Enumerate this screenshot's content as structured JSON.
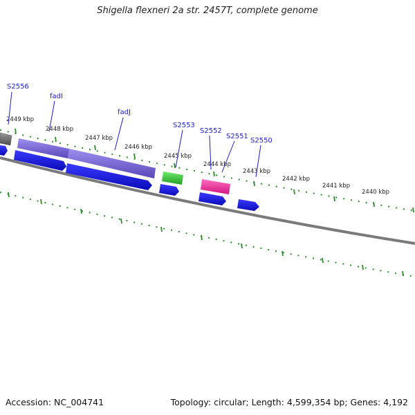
{
  "title": "Shigella flexneri 2a str. 2457T, complete genome",
  "footer": {
    "accession": "Accession: NC_004741",
    "summary": "Topology: circular; Length: 4,599,354 bp; Genes: 4,192"
  },
  "colors": {
    "backbone": "#7a7a7a",
    "tick": "#2a8a2a",
    "reverse_gene": "#2020e0",
    "feature_purple": "#7b68d6",
    "feature_gray": "#6e6e6e",
    "feature_green": "#3bc23b",
    "feature_pink": "#ee2f9a",
    "label_text": "#1a1acc"
  },
  "kbp_ticks": [
    "2449 kbp",
    "2448 kbp",
    "2447 kbp",
    "2446 kbp",
    "2445 kbp",
    "2444 kbp",
    "2443 kbp",
    "2442 kbp",
    "2441 kbp",
    "2440 kbp"
  ],
  "gene_labels": [
    "S2556",
    "fadI",
    "fadJ",
    "S2553",
    "S2552",
    "S2551",
    "S2550"
  ]
}
